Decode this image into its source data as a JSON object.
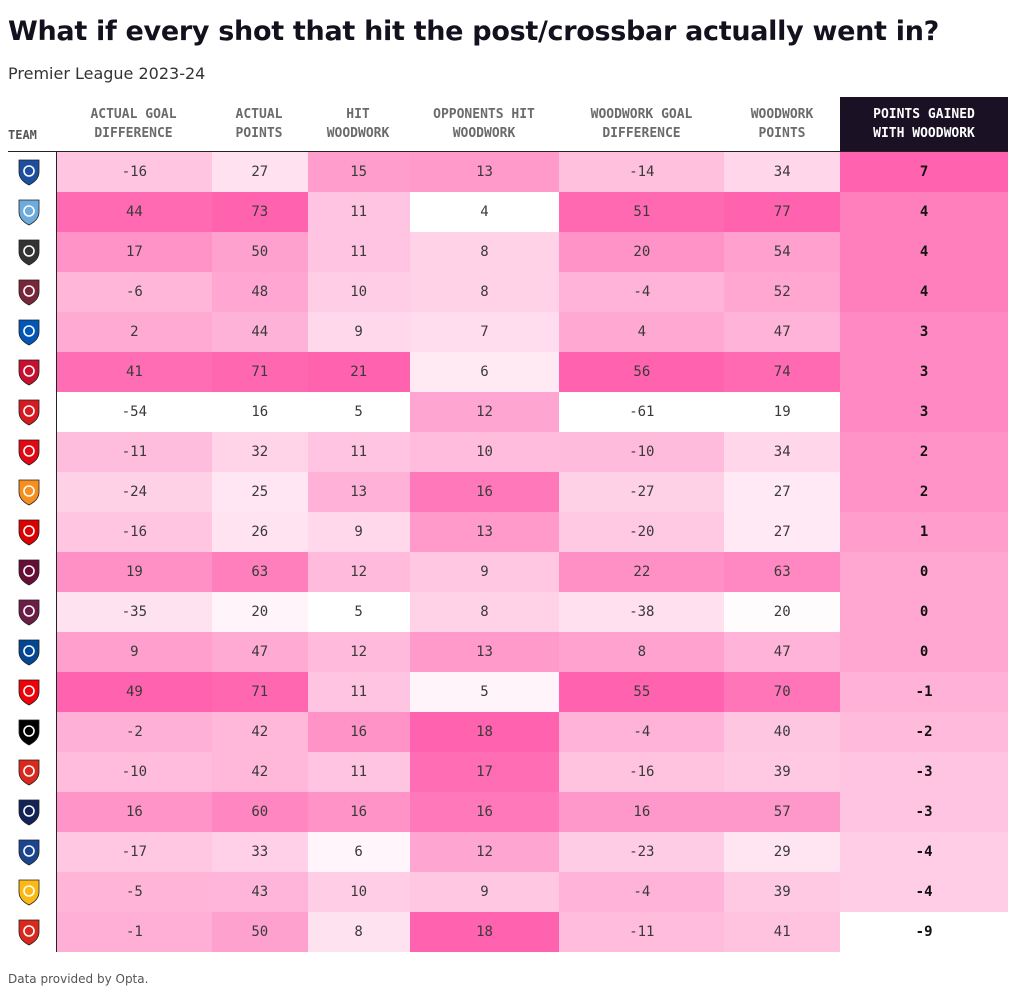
{
  "title": "What if every shot that hit the post/crossbar actually went in?",
  "subtitle": "Premier League 2023-24",
  "footer": "Data provided by Opta.",
  "columns": [
    "TEAM",
    "ACTUAL GOAL DIFFERENCE",
    "ACTUAL POINTS",
    "HIT WOODWORK",
    "OPPONENTS HIT WOODWORK",
    "WOODWORK GOAL DIFFERENCE",
    "WOODWORK POINTS",
    "POINTS GAINED WITH WOODWORK"
  ],
  "colors": {
    "heat_low": "#ffffff",
    "heat_high": "#ff62ae",
    "header_dark": "#1a1125"
  },
  "chart_data": {
    "type": "table",
    "rows": [
      {
        "crest_icon": "everton-crest-icon",
        "color": "#1d4fa0",
        "values": [
          -16,
          27,
          15,
          13,
          -14,
          34,
          7
        ]
      },
      {
        "crest_icon": "man-city-crest-icon",
        "color": "#6cabdd",
        "values": [
          44,
          73,
          11,
          4,
          51,
          77,
          4
        ]
      },
      {
        "crest_icon": "newcastle-crest-icon",
        "color": "#333333",
        "values": [
          17,
          50,
          11,
          8,
          20,
          54,
          4
        ]
      },
      {
        "crest_icon": "west-ham-crest-icon",
        "color": "#7a263a",
        "values": [
          -6,
          48,
          10,
          8,
          -4,
          52,
          4
        ]
      },
      {
        "crest_icon": "brighton-crest-icon",
        "color": "#0057b8",
        "values": [
          2,
          44,
          9,
          7,
          4,
          47,
          3
        ]
      },
      {
        "crest_icon": "liverpool-crest-icon",
        "color": "#c8102e",
        "values": [
          41,
          71,
          21,
          6,
          56,
          74,
          3
        ]
      },
      {
        "crest_icon": "sheffield-united-crest-icon",
        "color": "#d71920",
        "values": [
          -54,
          16,
          5,
          12,
          -61,
          19,
          3
        ]
      },
      {
        "crest_icon": "brentford-crest-icon",
        "color": "#e30613",
        "values": [
          -11,
          32,
          11,
          10,
          -10,
          34,
          2
        ]
      },
      {
        "crest_icon": "luton-crest-icon",
        "color": "#f78f1e",
        "values": [
          -24,
          25,
          13,
          16,
          -27,
          27,
          2
        ]
      },
      {
        "crest_icon": "nottingham-forest-crest-icon",
        "color": "#dd0000",
        "values": [
          -16,
          26,
          9,
          13,
          -20,
          27,
          1
        ]
      },
      {
        "crest_icon": "aston-villa-crest-icon",
        "color": "#670e36",
        "values": [
          19,
          63,
          12,
          9,
          22,
          63,
          0
        ]
      },
      {
        "crest_icon": "burnley-crest-icon",
        "color": "#6c1d45",
        "values": [
          -35,
          20,
          5,
          8,
          -38,
          20,
          0
        ]
      },
      {
        "crest_icon": "chelsea-crest-icon",
        "color": "#034694",
        "values": [
          9,
          47,
          12,
          13,
          8,
          47,
          0
        ]
      },
      {
        "crest_icon": "arsenal-crest-icon",
        "color": "#ef0107",
        "values": [
          49,
          71,
          11,
          5,
          55,
          70,
          -1
        ]
      },
      {
        "crest_icon": "fulham-crest-icon",
        "color": "#000000",
        "values": [
          -2,
          42,
          16,
          18,
          -4,
          40,
          -2
        ]
      },
      {
        "crest_icon": "bournemouth-crest-icon",
        "color": "#da291c",
        "values": [
          -10,
          42,
          11,
          17,
          -16,
          39,
          -3
        ]
      },
      {
        "crest_icon": "tottenham-crest-icon",
        "color": "#132257",
        "values": [
          16,
          60,
          16,
          16,
          16,
          57,
          -3
        ]
      },
      {
        "crest_icon": "crystal-palace-crest-icon",
        "color": "#1b458f",
        "values": [
          -17,
          33,
          6,
          12,
          -23,
          29,
          -4
        ]
      },
      {
        "crest_icon": "wolves-crest-icon",
        "color": "#fdb913",
        "values": [
          -5,
          43,
          10,
          9,
          -4,
          39,
          -4
        ]
      },
      {
        "crest_icon": "man-united-crest-icon",
        "color": "#da291c",
        "values": [
          -1,
          50,
          8,
          18,
          -11,
          41,
          -9
        ]
      }
    ]
  }
}
